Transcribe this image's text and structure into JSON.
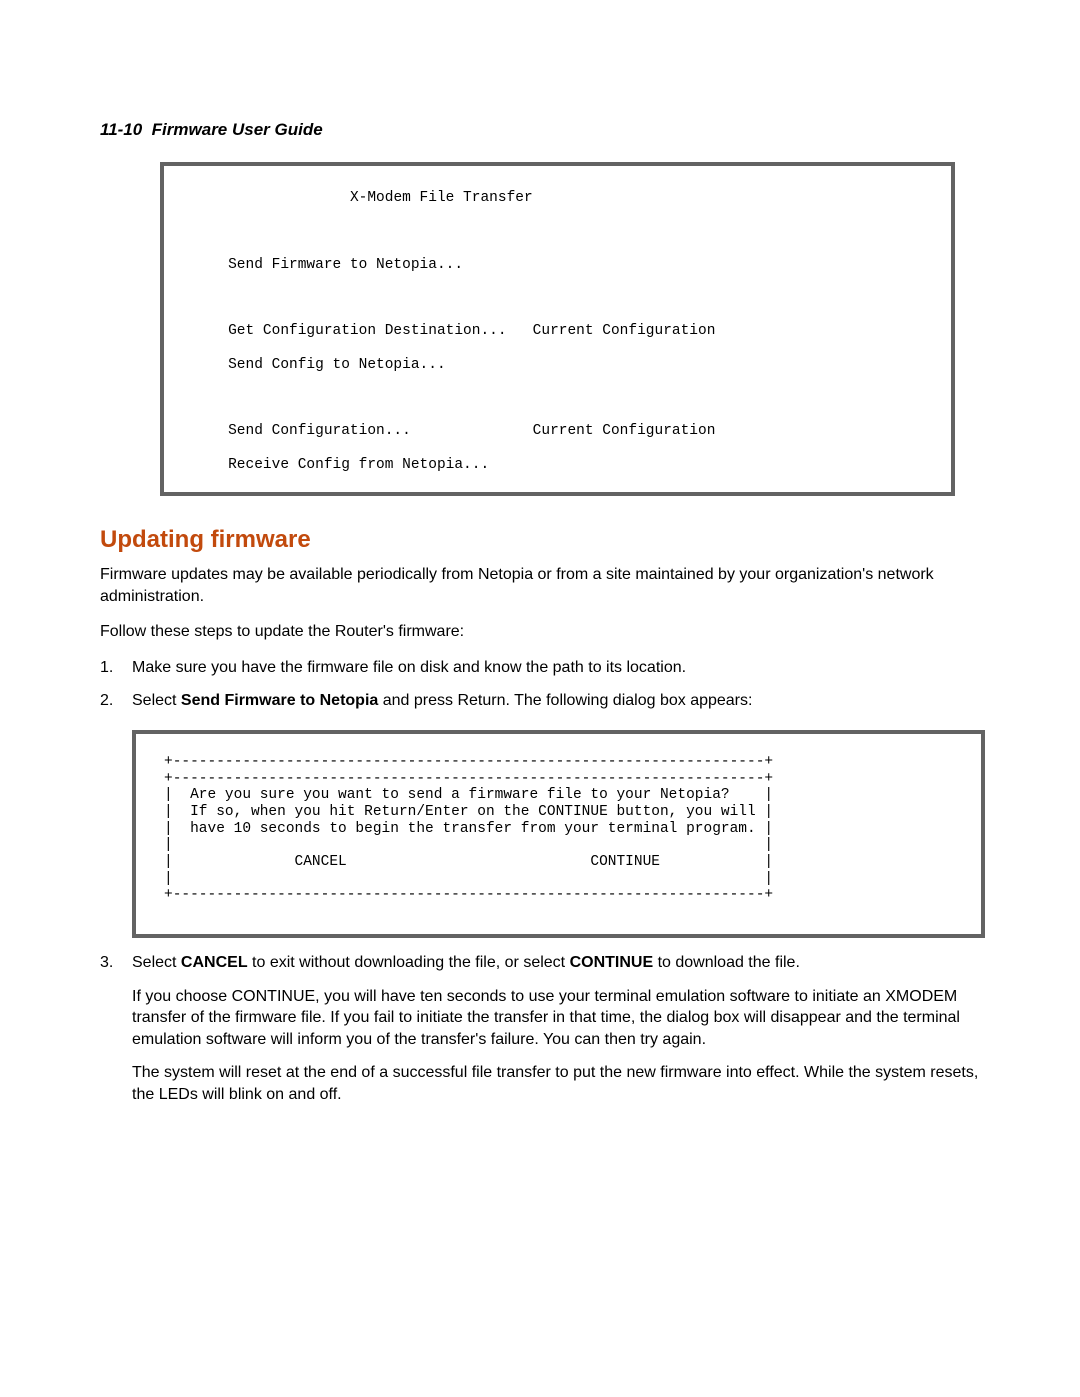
{
  "header": {
    "page_ref": "11-10",
    "title": "Firmware User Guide"
  },
  "terminal1": {
    "title": "X-Modem File Transfer",
    "l1": "Send Firmware to Netopia...",
    "l2a": "Get Configuration Destination...",
    "l2b": "Current Configuration",
    "l3": "Send Config to Netopia...",
    "l4a": "Send Configuration...",
    "l4b": "Current Configuration",
    "l5": "Receive Config from Netopia..."
  },
  "section": {
    "heading": "Updating firmware",
    "intro": "Firmware updates may be available periodically from Netopia or from a site maintained by your organization's network administration.",
    "follow": "Follow these steps to update the Router's firmware:"
  },
  "steps": {
    "s1": "Make sure you have the firmware file on disk and know the path to its location.",
    "s2_a": "Select ",
    "s2_bold": "Send Firmware to Netopia",
    "s2_b": " and press Return. The following dialog box appears:",
    "s3_a": "Select ",
    "s3_boldA": "CANCEL",
    "s3_b": " to exit without downloading the file, or select ",
    "s3_boldB": "CONTINUE",
    "s3_c": " to download the file.",
    "s3_p1": "If you choose CONTINUE, you will have ten seconds to use your terminal emulation software to initiate an XMODEM transfer of the firmware file. If you fail to initiate the transfer in that time, the dialog box will disappear and the terminal emulation software will inform you of the transfer's failure. You can then try again.",
    "s3_p2": "The system will reset at the end of a successful file transfer to put the new firmware into effect. While the system resets, the LEDs will blink on and off."
  },
  "terminal2": {
    "border_top": "+--------------------------------------------------------------------+",
    "q1": "|  Are you sure you want to send a firmware file to your Netopia?    |",
    "q2": "|  If so, when you hit Return/Enter on the CONTINUE button, you will |",
    "q3": "|  have 10 seconds to begin the transfer from your terminal program. |",
    "blank": "|                                                                    |",
    "buttons": "|              CANCEL                            CONTINUE            |",
    "border_bot": "+--------------------------------------------------------------------+"
  },
  "colors": {
    "heading": "#c24a0d",
    "terminal_border": "#636363",
    "text": "#000000",
    "background": "#ffffff"
  },
  "typography": {
    "body_fontsize": 16,
    "header_fontsize": 17,
    "heading_fontsize": 24,
    "mono_fontsize": 14.5
  }
}
